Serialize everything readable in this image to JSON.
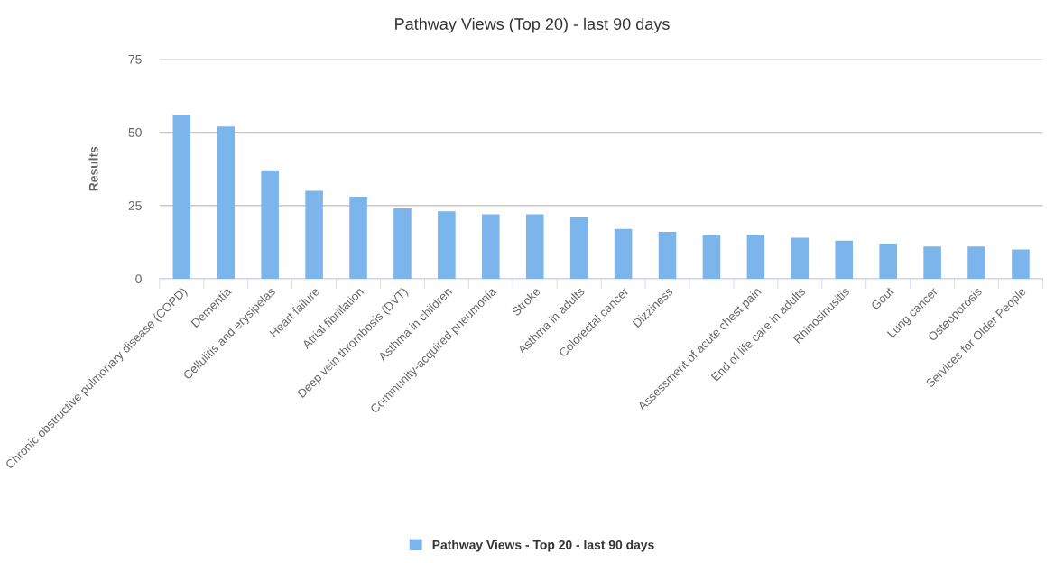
{
  "chart_data": {
    "type": "bar",
    "title": "Pathway Views (Top 20) - last 90 days",
    "ylabel": "Results",
    "categories": [
      "Chronic obstructive pulmonary disease (COPD)",
      "Dementia",
      "Cellulitis and erysipelas",
      "Heart failure",
      "Atrial fibrillation",
      "Deep vein thrombosis (DVT)",
      "Asthma in children",
      "Community-acquired pneumonia",
      "Stroke",
      "Asthma in adults",
      "Colorectal cancer",
      "Dizziness",
      null,
      "Assessment of acute chest pain",
      "End of life care in adults",
      "Rhinosinusitis",
      "Gout",
      "Lung cancer",
      "Osteoporosis",
      "Services for Older People"
    ],
    "series": [
      {
        "name": "Pathway Views - Top 20 - last 90 days",
        "color": "#7cb5ec",
        "values": [
          56,
          52,
          37,
          30,
          28,
          24,
          23,
          22,
          22,
          21,
          17,
          16,
          15,
          15,
          14,
          13,
          12,
          11,
          11,
          10
        ]
      }
    ],
    "ylim": [
      0,
      75
    ],
    "yticks": [
      0,
      25,
      50,
      75
    ],
    "grid": "y",
    "legend": "bottom"
  }
}
